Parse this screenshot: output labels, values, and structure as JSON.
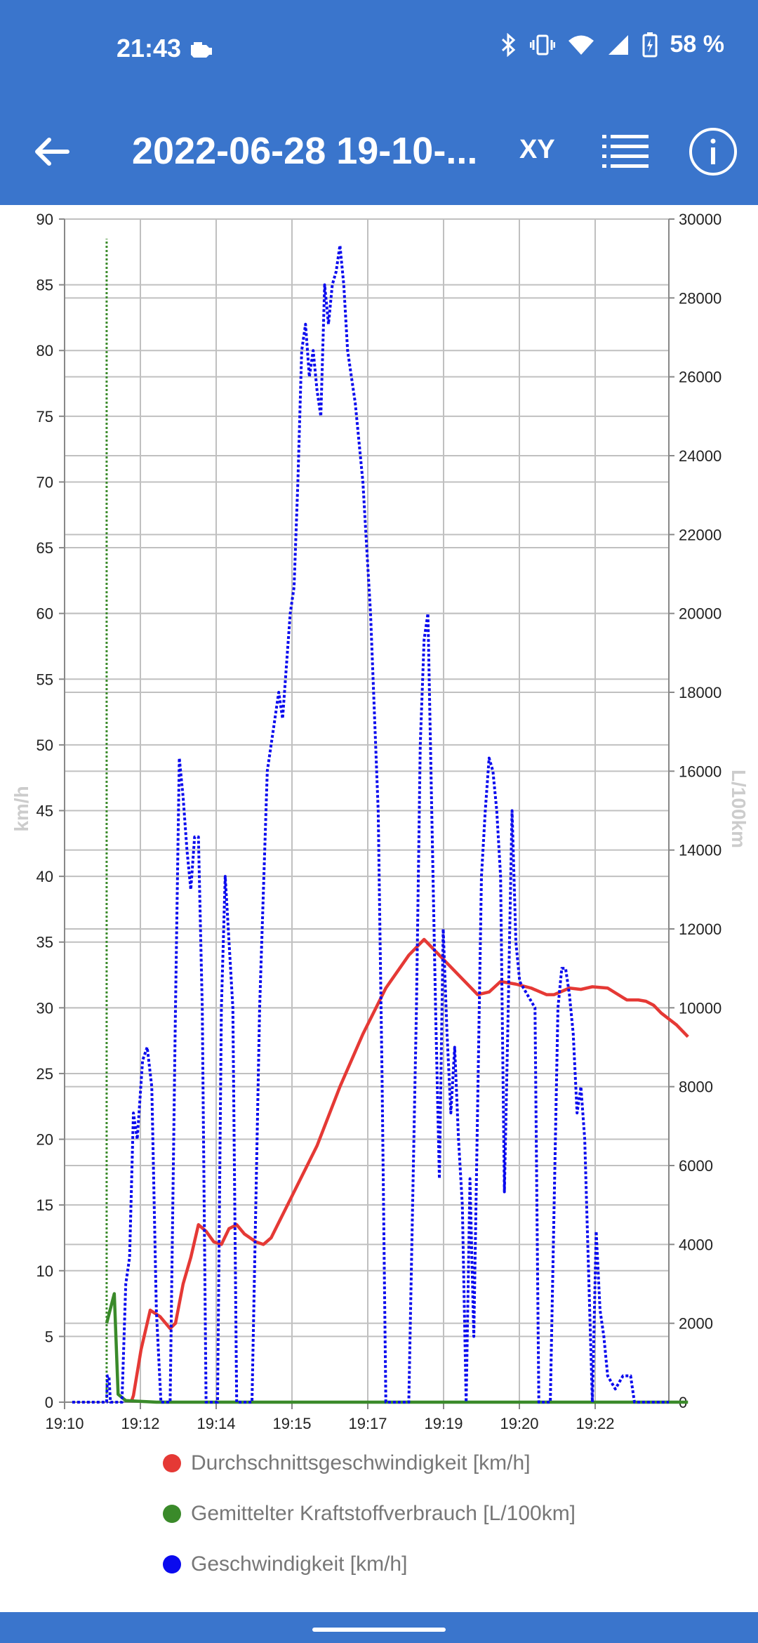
{
  "status_bar": {
    "time": "21:43",
    "battery": "58 %",
    "icons": [
      "car-engine-icon",
      "bluetooth-icon",
      "vibrate-icon",
      "wifi-icon",
      "signal-icon",
      "battery-icon"
    ]
  },
  "app_bar": {
    "title": "2022-06-28 19-10-...",
    "xy_label": "XY",
    "icons": [
      "back-arrow-icon",
      "list-icon",
      "info-icon"
    ]
  },
  "colors": {
    "bar": "#3a75cc",
    "avg_speed": "#e53935",
    "fuel": "#3a8a2a",
    "speed": "#0a0aee",
    "grid": "#c0c0c0"
  },
  "chart_data": {
    "type": "line",
    "ylabel_left": "km/h",
    "ylabel_right": "L/100km",
    "x_ticks": [
      "19:10",
      "19:12",
      "19:14",
      "19:15",
      "19:17",
      "19:19",
      "19:20",
      "19:22"
    ],
    "x_range": [
      "19:10:30",
      "19:23:40"
    ],
    "y_left": {
      "min": 0,
      "max": 90,
      "ticks": [
        0,
        5,
        10,
        15,
        20,
        25,
        30,
        35,
        40,
        45,
        50,
        55,
        60,
        65,
        70,
        75,
        80,
        85,
        90
      ]
    },
    "y_right": {
      "min": 0,
      "max": 30000,
      "ticks": [
        0,
        2000,
        4000,
        6000,
        8000,
        10000,
        12000,
        14000,
        16000,
        18000,
        20000,
        22000,
        24000,
        26000,
        28000,
        30000
      ]
    },
    "grid": true,
    "legend_position": "bottom",
    "series": [
      {
        "name": "Durchschnittsgeschwindigkeit [km/h]",
        "axis": "left",
        "style": "solid",
        "points": [
          [
            "19:11:57",
            0
          ],
          [
            "19:12:00",
            0.5
          ],
          [
            "19:12:10",
            4
          ],
          [
            "19:12:22",
            7
          ],
          [
            "19:12:35",
            6.5
          ],
          [
            "19:12:48",
            5.6
          ],
          [
            "19:12:55",
            6
          ],
          [
            "19:13:05",
            9
          ],
          [
            "19:13:15",
            11
          ],
          [
            "19:13:25",
            13.5
          ],
          [
            "19:13:35",
            13
          ],
          [
            "19:13:45",
            12.2
          ],
          [
            "19:13:55",
            12
          ],
          [
            "19:14:05",
            13.2
          ],
          [
            "19:14:15",
            13.5
          ],
          [
            "19:14:25",
            12.8
          ],
          [
            "19:14:40",
            12.2
          ],
          [
            "19:14:50",
            12
          ],
          [
            "19:15:00",
            12.5
          ],
          [
            "19:15:30",
            16
          ],
          [
            "19:16:00",
            19.5
          ],
          [
            "19:16:30",
            24
          ],
          [
            "19:17:00",
            28
          ],
          [
            "19:17:30",
            31.5
          ],
          [
            "19:18:00",
            34
          ],
          [
            "19:18:20",
            35.2
          ],
          [
            "19:18:40",
            34
          ],
          [
            "19:19:00",
            32.8
          ],
          [
            "19:19:30",
            31
          ],
          [
            "19:19:45",
            31.2
          ],
          [
            "19:20:00",
            32
          ],
          [
            "19:20:20",
            31.8
          ],
          [
            "19:20:40",
            31.5
          ],
          [
            "19:21:00",
            31
          ],
          [
            "19:21:10",
            31
          ],
          [
            "19:21:30",
            31.5
          ],
          [
            "19:21:45",
            31.4
          ],
          [
            "19:22:00",
            31.6
          ],
          [
            "19:22:20",
            31.5
          ],
          [
            "19:22:45",
            30.6
          ],
          [
            "19:23:00",
            30.6
          ],
          [
            "19:23:10",
            30.5
          ],
          [
            "19:23:20",
            30.2
          ],
          [
            "19:23:30",
            29.6
          ],
          [
            "19:23:50",
            28.7
          ],
          [
            "19:24:05",
            27.8
          ]
        ]
      },
      {
        "name": "Gemittelter Kraftstoffverbrauch [L/100km]",
        "axis": "right",
        "style": "mixed",
        "spike": {
          "time": "19:11:25",
          "value": 29500
        },
        "points": [
          [
            "19:11:25",
            2000
          ],
          [
            "19:11:35",
            2750
          ],
          [
            "19:11:40",
            200
          ],
          [
            "19:11:50",
            40
          ],
          [
            "19:12:30",
            0
          ],
          [
            "19:24:05",
            0
          ]
        ]
      },
      {
        "name": "Geschwindigkeit [km/h]",
        "axis": "left",
        "style": "dotted",
        "points": [
          [
            "19:10:40",
            0
          ],
          [
            "19:11:25",
            0
          ],
          [
            "19:11:26",
            2
          ],
          [
            "19:11:28",
            2
          ],
          [
            "19:11:30",
            0
          ],
          [
            "19:11:45",
            0
          ],
          [
            "19:11:50",
            9
          ],
          [
            "19:11:55",
            11
          ],
          [
            "19:12:00",
            22
          ],
          [
            "19:12:05",
            20
          ],
          [
            "19:12:12",
            26
          ],
          [
            "19:12:18",
            27
          ],
          [
            "19:12:24",
            24
          ],
          [
            "19:12:30",
            7
          ],
          [
            "19:12:36",
            0
          ],
          [
            "19:12:48",
            0
          ],
          [
            "19:12:55",
            30
          ],
          [
            "19:13:00",
            49
          ],
          [
            "19:13:05",
            46
          ],
          [
            "19:13:10",
            42
          ],
          [
            "19:13:15",
            39
          ],
          [
            "19:13:20",
            43
          ],
          [
            "19:13:25",
            43
          ],
          [
            "19:13:30",
            30
          ],
          [
            "19:13:35",
            0
          ],
          [
            "19:13:50",
            0
          ],
          [
            "19:13:55",
            30
          ],
          [
            "19:14:00",
            40
          ],
          [
            "19:14:05",
            35
          ],
          [
            "19:14:10",
            30
          ],
          [
            "19:14:15",
            0
          ],
          [
            "19:14:35",
            0
          ],
          [
            "19:14:45",
            30
          ],
          [
            "19:14:55",
            48
          ],
          [
            "19:15:05",
            52
          ],
          [
            "19:15:10",
            54
          ],
          [
            "19:15:15",
            52
          ],
          [
            "19:15:20",
            56
          ],
          [
            "19:15:25",
            60
          ],
          [
            "19:15:30",
            62
          ],
          [
            "19:15:35",
            70
          ],
          [
            "19:15:40",
            80
          ],
          [
            "19:15:45",
            82
          ],
          [
            "19:15:50",
            78
          ],
          [
            "19:15:55",
            80
          ],
          [
            "19:16:00",
            77
          ],
          [
            "19:16:05",
            75
          ],
          [
            "19:16:10",
            85
          ],
          [
            "19:16:15",
            82
          ],
          [
            "19:16:20",
            85
          ],
          [
            "19:16:25",
            86
          ],
          [
            "19:16:30",
            88
          ],
          [
            "19:16:35",
            85
          ],
          [
            "19:16:40",
            80
          ],
          [
            "19:16:45",
            78
          ],
          [
            "19:16:50",
            76
          ],
          [
            "19:17:00",
            70
          ],
          [
            "19:17:10",
            60
          ],
          [
            "19:17:20",
            45
          ],
          [
            "19:17:25",
            25
          ],
          [
            "19:17:30",
            0
          ],
          [
            "19:18:00",
            0
          ],
          [
            "19:18:10",
            30
          ],
          [
            "19:18:15",
            50
          ],
          [
            "19:18:20",
            58
          ],
          [
            "19:18:25",
            60
          ],
          [
            "19:18:30",
            45
          ],
          [
            "19:18:35",
            30
          ],
          [
            "19:18:40",
            17
          ],
          [
            "19:18:45",
            36
          ],
          [
            "19:18:50",
            28
          ],
          [
            "19:18:55",
            22
          ],
          [
            "19:19:00",
            27
          ],
          [
            "19:19:05",
            20
          ],
          [
            "19:19:10",
            15
          ],
          [
            "19:19:15",
            0
          ],
          [
            "19:19:20",
            17
          ],
          [
            "19:19:25",
            5
          ],
          [
            "19:19:35",
            40
          ],
          [
            "19:19:40",
            45
          ],
          [
            "19:19:45",
            49
          ],
          [
            "19:19:50",
            48
          ],
          [
            "19:19:55",
            45
          ],
          [
            "19:20:00",
            40
          ],
          [
            "19:20:05",
            16
          ],
          [
            "19:20:10",
            30
          ],
          [
            "19:20:15",
            45
          ],
          [
            "19:20:20",
            35
          ],
          [
            "19:20:25",
            32
          ],
          [
            "19:20:35",
            31
          ],
          [
            "19:20:45",
            30
          ],
          [
            "19:20:50",
            0
          ],
          [
            "19:21:05",
            0
          ],
          [
            "19:21:10",
            15
          ],
          [
            "19:21:15",
            30
          ],
          [
            "19:21:20",
            33
          ],
          [
            "19:21:25",
            33
          ],
          [
            "19:21:30",
            31
          ],
          [
            "19:21:35",
            28
          ],
          [
            "19:21:40",
            22
          ],
          [
            "19:21:45",
            24
          ],
          [
            "19:21:50",
            20
          ],
          [
            "19:21:55",
            10
          ],
          [
            "19:22:00",
            0
          ],
          [
            "19:22:05",
            13
          ],
          [
            "19:22:10",
            7
          ],
          [
            "19:22:15",
            5
          ],
          [
            "19:22:20",
            2
          ],
          [
            "19:22:30",
            1
          ],
          [
            "19:22:40",
            2
          ],
          [
            "19:22:50",
            2
          ],
          [
            "19:22:55",
            0
          ],
          [
            "19:23:40",
            0
          ]
        ]
      }
    ]
  }
}
